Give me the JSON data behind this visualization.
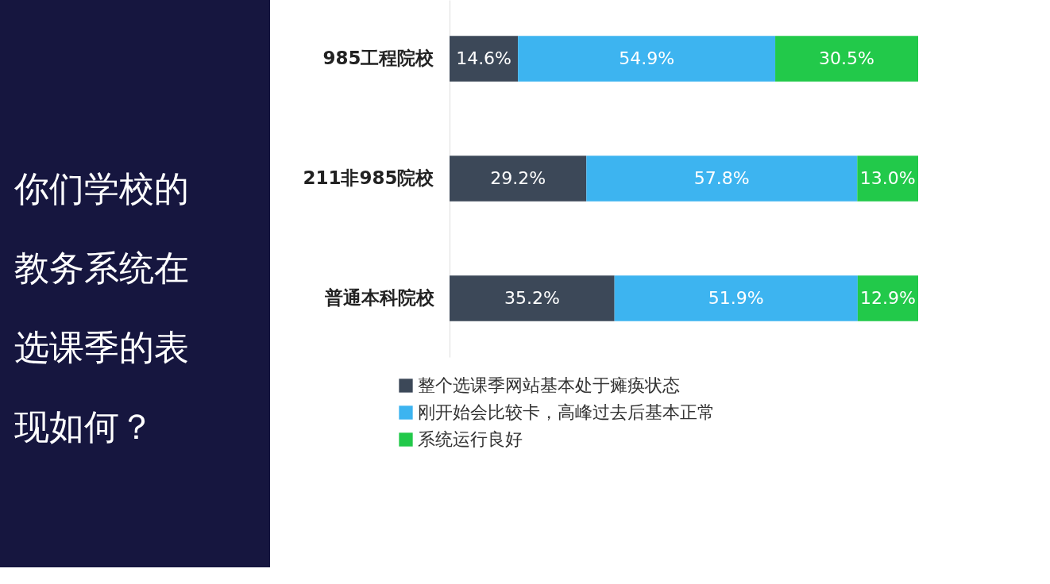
{
  "chart_data": {
    "type": "bar",
    "orientation": "horizontal",
    "stacked": true,
    "title": "你们学校的教务系统在选课季的表现如何？",
    "categories": [
      "985工程院校",
      "211非985院校",
      "普通本科院校"
    ],
    "series": [
      {
        "name": "整个选课季网站基本处于瘫痪状态",
        "color": "#3c4858",
        "values": [
          14.6,
          29.2,
          35.2
        ],
        "value_labels": [
          "14.6%",
          "29.2%",
          "35.2%"
        ]
      },
      {
        "name": "刚开始会比较卡，高峰过去后基本正常",
        "color": "#3db4f0",
        "values": [
          54.9,
          57.8,
          51.9
        ],
        "value_labels": [
          "54.9%",
          "57.8%",
          "51.9%"
        ]
      },
      {
        "name": "系统运行良好",
        "color": "#22c94a",
        "values": [
          30.5,
          13.0,
          12.9
        ],
        "value_labels": [
          "30.5%",
          "13.0%",
          "12.9%"
        ]
      }
    ],
    "legend": "bottom"
  }
}
